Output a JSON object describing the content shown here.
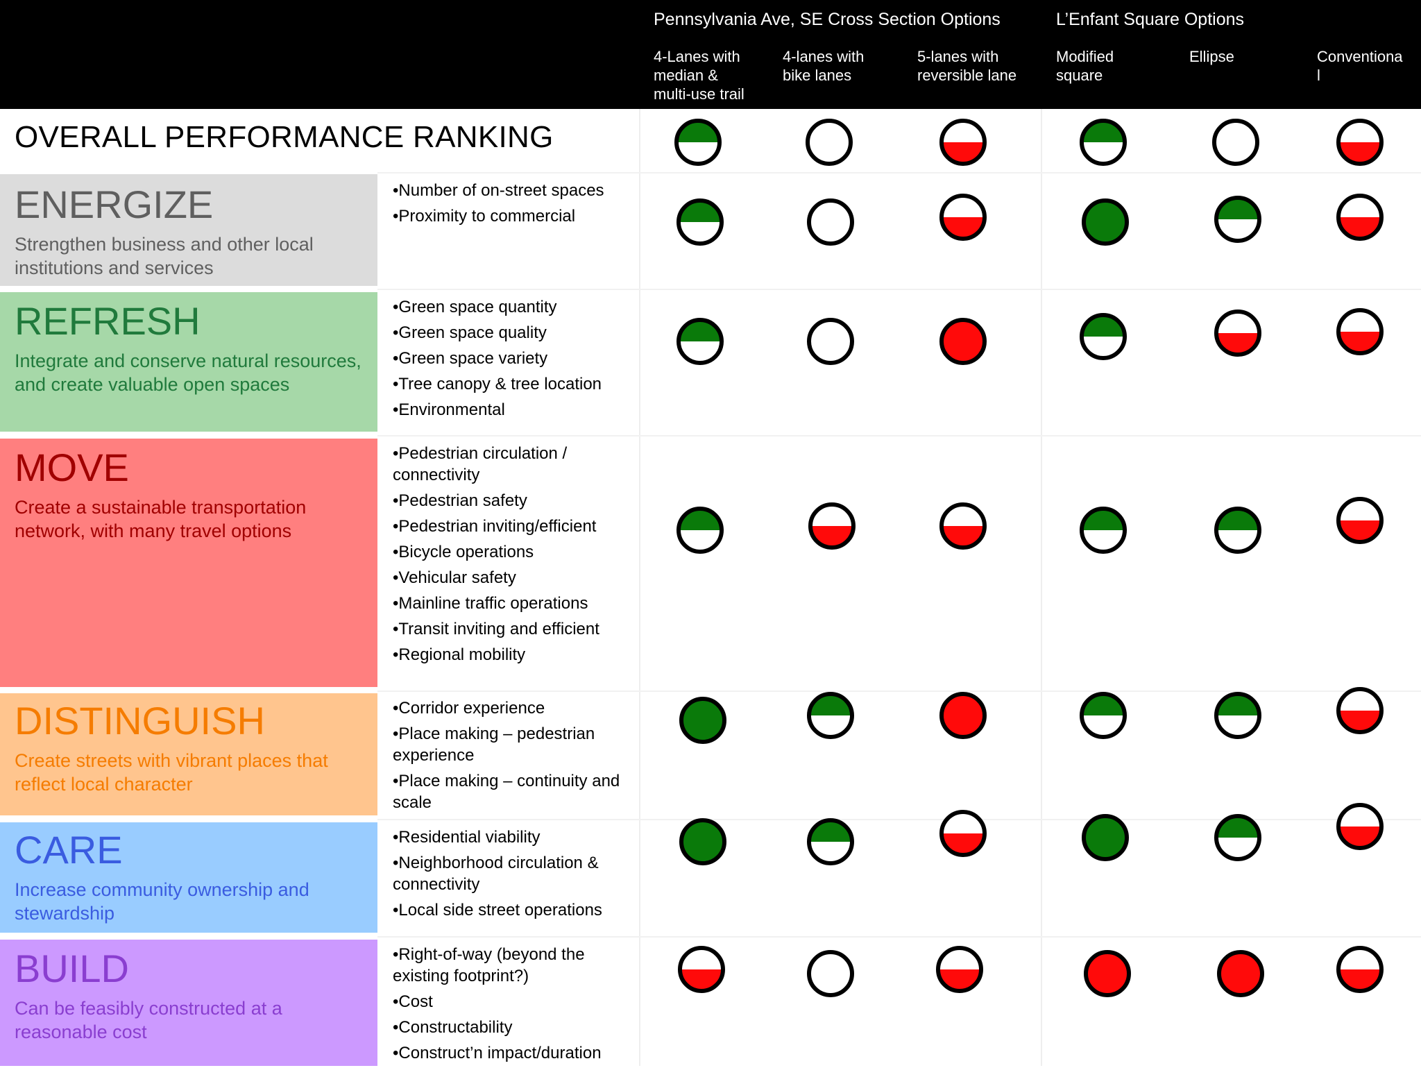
{
  "header": {
    "groups": [
      {
        "label": "Pennsylvania Ave, SE Cross Section Options"
      },
      {
        "label": "L’Enfant Square Options"
      }
    ],
    "columns": [
      {
        "label": "4-Lanes with\nmedian &\nmulti-use trail"
      },
      {
        "label": "4-lanes with\nbike lanes"
      },
      {
        "label": "5-lanes with\nreversible lane"
      },
      {
        "label": "Modified\nsquare"
      },
      {
        "label": "Ellipse"
      },
      {
        "label": "Conventiona\nl"
      }
    ]
  },
  "overall": {
    "label": "OVERALL PERFORMANCE RANKING",
    "ratings": [
      "green-half",
      "empty",
      "red-half",
      "green-half",
      "empty",
      "red-half"
    ]
  },
  "categories": [
    {
      "title": "ENERGIZE",
      "description": "Strengthen business and other local institutions and services",
      "criteria": [
        "•Number of on-street spaces",
        "•Proximity to commercial"
      ],
      "ratings": [
        "green-half",
        "empty",
        "red-half",
        "green-full",
        "green-half",
        "red-half"
      ]
    },
    {
      "title": "REFRESH",
      "description": "Integrate and conserve natural resources, and create valuable open spaces",
      "criteria": [
        "•Green space quantity",
        "•Green space quality",
        "•Green space variety",
        "•Tree canopy & tree location",
        "•Environmental"
      ],
      "ratings": [
        "green-half",
        "empty",
        "red-full",
        "green-half",
        "red-half",
        "red-half"
      ]
    },
    {
      "title": "MOVE",
      "description": "Create a sustainable transportation network, with many travel options",
      "criteria": [
        "•Pedestrian circulation / connectivity",
        "•Pedestrian safety",
        "•Pedestrian inviting/efficient",
        "•Bicycle operations",
        "•Vehicular safety",
        "•Mainline traffic operations",
        "•Transit inviting and efficient",
        "•Regional mobility"
      ],
      "ratings": [
        "green-half",
        "red-half",
        "red-half",
        "green-half",
        "green-half",
        "red-half"
      ]
    },
    {
      "title": "DISTINGUISH",
      "description": "Create streets with vibrant places that reflect local character",
      "criteria": [
        "•Corridor experience",
        "•Place making – pedestrian experience",
        "•Place making – continuity and scale"
      ],
      "ratings": [
        "green-full",
        "green-half",
        "red-full",
        "green-half",
        "green-half",
        "red-half"
      ]
    },
    {
      "title": "CARE",
      "description": "Increase community ownership and stewardship",
      "criteria": [
        "•Residential viability",
        "•Neighborhood circulation & connectivity",
        "•Local side street operations"
      ],
      "ratings": [
        "green-full",
        "green-half",
        "red-half",
        "green-full",
        "green-half",
        "red-half"
      ]
    },
    {
      "title": "BUILD",
      "description": "Can be feasibly constructed at a reasonable cost",
      "criteria": [
        "•Right-of-way (beyond the existing footprint?)",
        "•Cost",
        "•Constructability",
        "•Construct’n impact/duration"
      ],
      "ratings": [
        "red-half",
        "empty",
        "red-half",
        "red-full",
        "red-full",
        "red-half"
      ]
    }
  ],
  "colors": {
    "green": "#0a7a0a",
    "red": "#ff0a0a",
    "energize_bg": "#dcdcdc",
    "energize_fg": "#5f5f5f",
    "refresh_bg": "#a6d8a8",
    "refresh_fg": "#207a3c",
    "move_bg": "#ff7f7f",
    "move_fg": "#a00000",
    "distinguish_bg": "#ffc58e",
    "distinguish_fg": "#f57c00",
    "care_bg": "#99ccff",
    "care_fg": "#3a5ce0",
    "build_bg": "#cc99ff",
    "build_fg": "#8a3ed0"
  }
}
